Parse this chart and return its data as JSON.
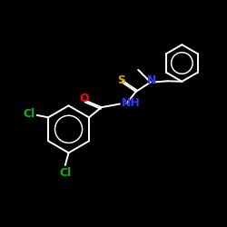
{
  "bg_color": "#000000",
  "bond_color": "#ffffff",
  "S_color": "#ccaa00",
  "N_color": "#3333ff",
  "O_color": "#ff0000",
  "Cl_color": "#00bb00",
  "bond_width": 1.4,
  "font_size": 8,
  "fig_width": 2.5,
  "fig_height": 2.5,
  "dpi": 100,
  "xlim": [
    0,
    10
  ],
  "ylim": [
    0,
    10
  ]
}
